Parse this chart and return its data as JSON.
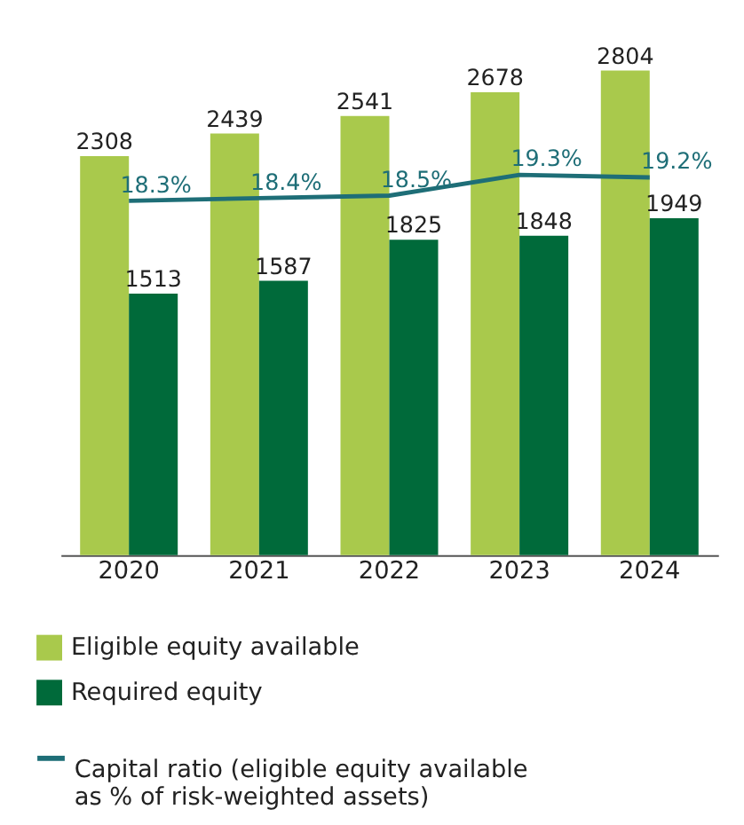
{
  "chart_data": {
    "type": "bar",
    "categories": [
      "2020",
      "2021",
      "2022",
      "2023",
      "2024"
    ],
    "series": [
      {
        "name": "Eligible equity available",
        "color": "#a9c94c",
        "values": [
          2308,
          2439,
          2541,
          2678,
          2804
        ]
      },
      {
        "name": "Required equity",
        "color": "#006a3a",
        "values": [
          1513,
          1587,
          1825,
          1848,
          1949
        ]
      },
      {
        "name": "Capital ratio (eligible equity available as % of risk-weighted assets)",
        "type": "line",
        "axis": "y2",
        "color": "#1e6e77",
        "values": [
          18.3,
          18.4,
          18.5,
          19.3,
          19.2
        ],
        "value_labels": [
          "18.3%",
          "18.4%",
          "18.5%",
          "19.3%",
          "19.2%"
        ]
      }
    ],
    "data_labels": true,
    "tick_labels": "x",
    "grid": false,
    "legend": "bottom"
  }
}
